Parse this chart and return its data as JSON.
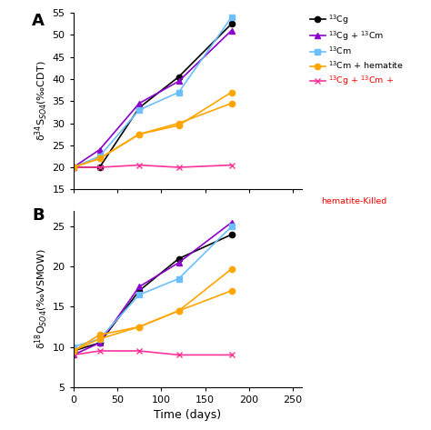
{
  "time_points": [
    0,
    30,
    75,
    120,
    180
  ],
  "panel_A": {
    "series": [
      {
        "label": "$^{13}$Cg",
        "color": "#000000",
        "marker": "o",
        "values": [
          20.0,
          20.0,
          33.5,
          40.5,
          52.5
        ]
      },
      {
        "label": "$^{13}$Cg + $^{13}$Cm",
        "color": "#8B00CC",
        "marker": "^",
        "values": [
          20.0,
          24.0,
          34.5,
          39.5,
          51.0
        ]
      },
      {
        "label": "$^{13}$Cm",
        "color": "#6BBFFF",
        "marker": "s",
        "values": [
          20.0,
          22.5,
          33.0,
          37.0,
          54.0
        ]
      },
      {
        "label": "$^{13}$Cm + hematite",
        "color": "#FFA500",
        "marker": "o",
        "values": [
          20.0,
          22.0,
          27.5,
          29.5,
          37.0
        ]
      },
      {
        "label": "$^{13}$Cg + $^{13}$Cm +",
        "color": "#FF3399",
        "marker": "x",
        "values": [
          20.0,
          20.0,
          20.5,
          20.0,
          20.5
        ]
      }
    ],
    "orange_second": [
      20.0,
      22.0,
      27.5,
      30.0,
      34.5
    ],
    "ylabel": "δ$^{34}$S$_{SO4}$(‰CDT)",
    "ylim": [
      15,
      55
    ],
    "yticks": [
      15,
      20,
      25,
      30,
      35,
      40,
      45,
      50,
      55
    ]
  },
  "panel_B": {
    "series": [
      {
        "label": "$^{13}$Cg",
        "color": "#000000",
        "marker": "o",
        "values": [
          9.5,
          10.5,
          17.0,
          21.0,
          24.0
        ]
      },
      {
        "label": "$^{13}$Cg + $^{13}$Cm",
        "color": "#8B00CC",
        "marker": "^",
        "values": [
          9.0,
          10.5,
          17.5,
          20.5,
          25.5
        ]
      },
      {
        "label": "$^{13}$Cm",
        "color": "#6BBFFF",
        "marker": "s",
        "values": [
          10.0,
          11.0,
          16.5,
          18.5,
          25.0
        ]
      },
      {
        "label": "$^{13}$Cm + hematite",
        "color": "#FFA500",
        "marker": "o",
        "values": [
          9.5,
          11.5,
          12.5,
          14.5,
          19.7
        ]
      },
      {
        "label": "$^{13}$Cg + $^{13}$Cm +",
        "color": "#FF3399",
        "marker": "x",
        "values": [
          9.0,
          9.5,
          9.5,
          9.0,
          9.0
        ]
      }
    ],
    "orange_second": [
      9.5,
      11.0,
      12.5,
      14.5,
      17.0
    ],
    "ylabel": "δ$^{18}$O$_{SO4}$(‰VSMOW)",
    "xlabel": "Time (days)",
    "ylim": [
      5,
      27
    ],
    "yticks": [
      5,
      10,
      15,
      20,
      25
    ]
  },
  "xlim": [
    0,
    260
  ],
  "xticks": [
    0,
    50,
    100,
    150,
    200,
    250
  ],
  "legend_colors": [
    "#000000",
    "#8B00CC",
    "#6BBFFF",
    "#FFA500",
    "#FF3399"
  ],
  "legend_markers": [
    "o",
    "^",
    "s",
    "o",
    "x"
  ],
  "legend_labels": [
    "$^{13}$Cg",
    "$^{13}$Cg + $^{13}$Cm",
    "$^{13}$Cm",
    "$^{13}$Cm + hematite",
    "$^{13}$Cg + $^{13}$Cm +"
  ],
  "legend_killed_text": "hematite-Killed",
  "legend_killed_color": "#FF0000"
}
